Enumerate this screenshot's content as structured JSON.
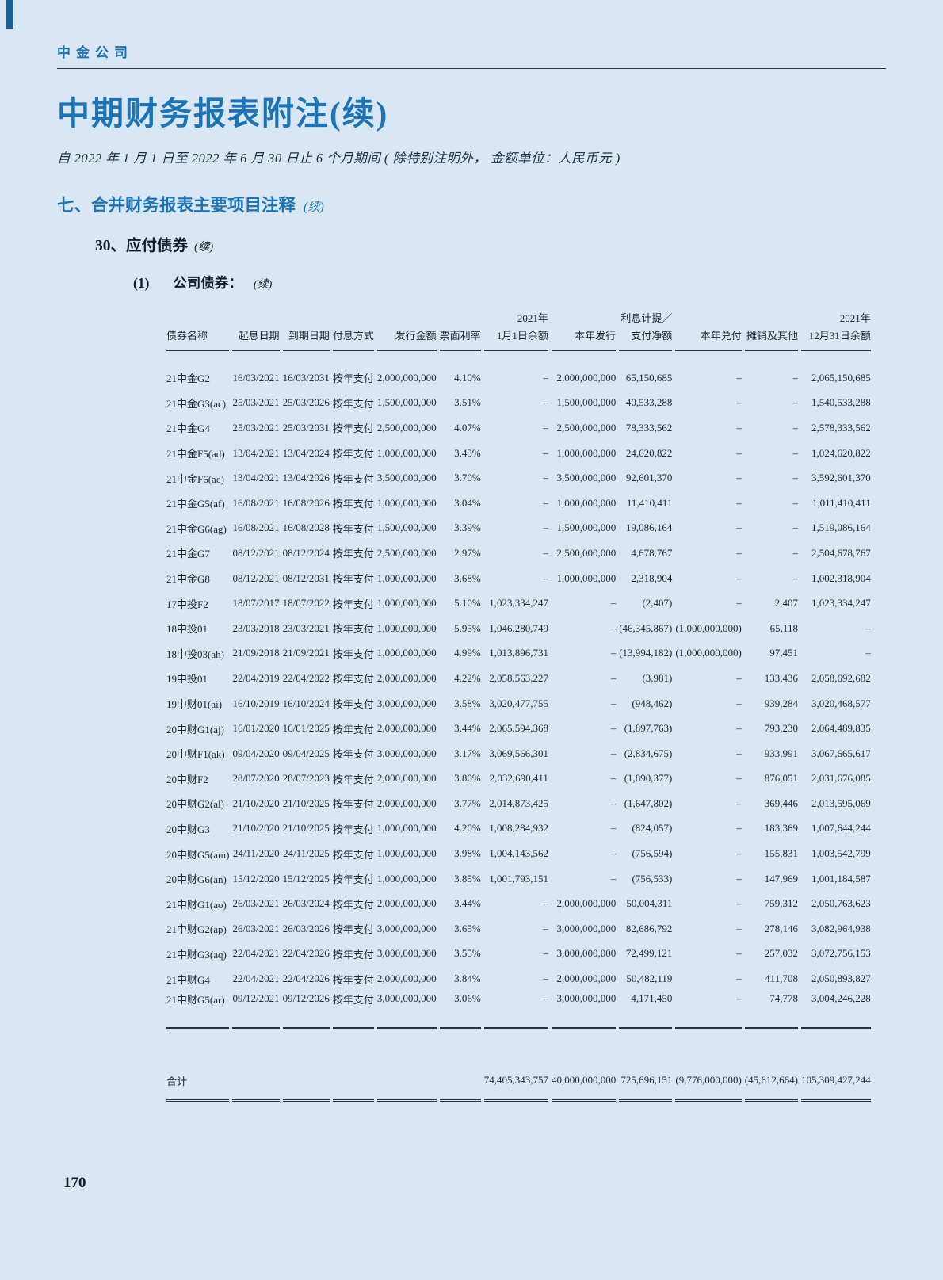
{
  "page": {
    "company": "中金公司",
    "title": "中期财务报表附注(续)",
    "subtitle": "自 2022 年 1 月 1 日至 2022 年 6 月 30 日止 6 个月期间 ( 除特别注明外， 金额单位：人民币元 )",
    "section": "七、合并财务报表主要项目注释",
    "section_cont": "(续)",
    "subsection": "30、应付债券",
    "subsection_cont": "(续)",
    "item_num": "(1)",
    "item_title": "公司债券：",
    "item_cont": "(续)",
    "page_number": "170"
  },
  "table": {
    "header": {
      "year_top_left": "2021年",
      "interest_top": "利息计提／",
      "year_top_right": "2021年",
      "cols": [
        "债券名称",
        "起息日期",
        "到期日期",
        "付息方式",
        "发行金额",
        "票面利率",
        "1月1日余额",
        "本年发行",
        "支付净额",
        "本年兑付",
        "摊销及其他",
        "12月31日余额"
      ]
    },
    "rows": [
      [
        "21中金G2",
        "16/03/2021",
        "16/03/2031",
        "按年支付",
        "2,000,000,000",
        "4.10%",
        "–",
        "2,000,000,000",
        "65,150,685",
        "–",
        "–",
        "2,065,150,685"
      ],
      [
        "21中金G3(ac)",
        "25/03/2021",
        "25/03/2026",
        "按年支付",
        "1,500,000,000",
        "3.51%",
        "–",
        "1,500,000,000",
        "40,533,288",
        "–",
        "–",
        "1,540,533,288"
      ],
      [
        "21中金G4",
        "25/03/2021",
        "25/03/2031",
        "按年支付",
        "2,500,000,000",
        "4.07%",
        "–",
        "2,500,000,000",
        "78,333,562",
        "–",
        "–",
        "2,578,333,562"
      ],
      [
        "21中金F5(ad)",
        "13/04/2021",
        "13/04/2024",
        "按年支付",
        "1,000,000,000",
        "3.43%",
        "–",
        "1,000,000,000",
        "24,620,822",
        "–",
        "–",
        "1,024,620,822"
      ],
      [
        "21中金F6(ae)",
        "13/04/2021",
        "13/04/2026",
        "按年支付",
        "3,500,000,000",
        "3.70%",
        "–",
        "3,500,000,000",
        "92,601,370",
        "–",
        "–",
        "3,592,601,370"
      ],
      [
        "21中金G5(af)",
        "16/08/2021",
        "16/08/2026",
        "按年支付",
        "1,000,000,000",
        "3.04%",
        "–",
        "1,000,000,000",
        "11,410,411",
        "–",
        "–",
        "1,011,410,411"
      ],
      [
        "21中金G6(ag)",
        "16/08/2021",
        "16/08/2028",
        "按年支付",
        "1,500,000,000",
        "3.39%",
        "–",
        "1,500,000,000",
        "19,086,164",
        "–",
        "–",
        "1,519,086,164"
      ],
      [
        "21中金G7",
        "08/12/2021",
        "08/12/2024",
        "按年支付",
        "2,500,000,000",
        "2.97%",
        "–",
        "2,500,000,000",
        "4,678,767",
        "–",
        "–",
        "2,504,678,767"
      ],
      [
        "21中金G8",
        "08/12/2021",
        "08/12/2031",
        "按年支付",
        "1,000,000,000",
        "3.68%",
        "–",
        "1,000,000,000",
        "2,318,904",
        "–",
        "–",
        "1,002,318,904"
      ],
      [
        "17中投F2",
        "18/07/2017",
        "18/07/2022",
        "按年支付",
        "1,000,000,000",
        "5.10%",
        "1,023,334,247",
        "–",
        "(2,407)",
        "–",
        "2,407",
        "1,023,334,247"
      ],
      [
        "18中投01",
        "23/03/2018",
        "23/03/2021",
        "按年支付",
        "1,000,000,000",
        "5.95%",
        "1,046,280,749",
        "–",
        "(46,345,867)",
        "(1,000,000,000)",
        "65,118",
        "–"
      ],
      [
        "18中投03(ah)",
        "21/09/2018",
        "21/09/2021",
        "按年支付",
        "1,000,000,000",
        "4.99%",
        "1,013,896,731",
        "–",
        "(13,994,182)",
        "(1,000,000,000)",
        "97,451",
        "–"
      ],
      [
        "19中投01",
        "22/04/2019",
        "22/04/2022",
        "按年支付",
        "2,000,000,000",
        "4.22%",
        "2,058,563,227",
        "–",
        "(3,981)",
        "–",
        "133,436",
        "2,058,692,682"
      ],
      [
        "19中财01(ai)",
        "16/10/2019",
        "16/10/2024",
        "按年支付",
        "3,000,000,000",
        "3.58%",
        "3,020,477,755",
        "–",
        "(948,462)",
        "–",
        "939,284",
        "3,020,468,577"
      ],
      [
        "20中财G1(aj)",
        "16/01/2020",
        "16/01/2025",
        "按年支付",
        "2,000,000,000",
        "3.44%",
        "2,065,594,368",
        "–",
        "(1,897,763)",
        "–",
        "793,230",
        "2,064,489,835"
      ],
      [
        "20中财F1(ak)",
        "09/04/2020",
        "09/04/2025",
        "按年支付",
        "3,000,000,000",
        "3.17%",
        "3,069,566,301",
        "–",
        "(2,834,675)",
        "–",
        "933,991",
        "3,067,665,617"
      ],
      [
        "20中财F2",
        "28/07/2020",
        "28/07/2023",
        "按年支付",
        "2,000,000,000",
        "3.80%",
        "2,032,690,411",
        "–",
        "(1,890,377)",
        "–",
        "876,051",
        "2,031,676,085"
      ],
      [
        "20中财G2(al)",
        "21/10/2020",
        "21/10/2025",
        "按年支付",
        "2,000,000,000",
        "3.77%",
        "2,014,873,425",
        "–",
        "(1,647,802)",
        "–",
        "369,446",
        "2,013,595,069"
      ],
      [
        "20中财G3",
        "21/10/2020",
        "21/10/2025",
        "按年支付",
        "1,000,000,000",
        "4.20%",
        "1,008,284,932",
        "–",
        "(824,057)",
        "–",
        "183,369",
        "1,007,644,244"
      ],
      [
        "20中财G5(am)",
        "24/11/2020",
        "24/11/2025",
        "按年支付",
        "1,000,000,000",
        "3.98%",
        "1,004,143,562",
        "–",
        "(756,594)",
        "–",
        "155,831",
        "1,003,542,799"
      ],
      [
        "20中财G6(an)",
        "15/12/2020",
        "15/12/2025",
        "按年支付",
        "1,000,000,000",
        "3.85%",
        "1,001,793,151",
        "–",
        "(756,533)",
        "–",
        "147,969",
        "1,001,184,587"
      ],
      [
        "21中财G1(ao)",
        "26/03/2021",
        "26/03/2024",
        "按年支付",
        "2,000,000,000",
        "3.44%",
        "–",
        "2,000,000,000",
        "50,004,311",
        "–",
        "759,312",
        "2,050,763,623"
      ],
      [
        "21中财G2(ap)",
        "26/03/2021",
        "26/03/2026",
        "按年支付",
        "3,000,000,000",
        "3.65%",
        "–",
        "3,000,000,000",
        "82,686,792",
        "–",
        "278,146",
        "3,082,964,938"
      ],
      [
        "21中财G3(aq)",
        "22/04/2021",
        "22/04/2026",
        "按年支付",
        "3,000,000,000",
        "3.55%",
        "–",
        "3,000,000,000",
        "72,499,121",
        "–",
        "257,032",
        "3,072,756,153"
      ],
      [
        "21中财G4",
        "22/04/2021",
        "22/04/2026",
        "按年支付",
        "2,000,000,000",
        "3.84%",
        "–",
        "2,000,000,000",
        "50,482,119",
        "–",
        "411,708",
        "2,050,893,827"
      ],
      [
        "21中财G5(ar)",
        "09/12/2021",
        "09/12/2026",
        "按年支付",
        "3,000,000,000",
        "3.06%",
        "–",
        "3,000,000,000",
        "4,171,450",
        "–",
        "74,778",
        "3,004,246,228"
      ]
    ],
    "total_label": "合计",
    "totals": [
      "74,405,343,757",
      "40,000,000,000",
      "725,696,151",
      "(9,776,000,000)",
      "(45,612,664)",
      "105,309,427,244"
    ]
  },
  "colors": {
    "page_background": "#d9e6f3",
    "accent_blue": "#1c74b4",
    "text_ink": "#1b2736",
    "rule_dark": "#26323f"
  }
}
